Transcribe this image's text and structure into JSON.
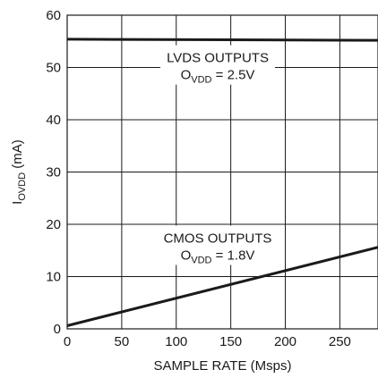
{
  "chart_data": {
    "type": "line",
    "xlabel": "SAMPLE RATE (Msps)",
    "ylabel": {
      "main": "I",
      "sub": "OVDD",
      "unit": " (mA)"
    },
    "xlim": [
      0,
      285
    ],
    "ylim": [
      0,
      60
    ],
    "x_ticks": [
      0,
      50,
      100,
      150,
      200,
      250
    ],
    "y_ticks": [
      0,
      10,
      20,
      30,
      40,
      50,
      60
    ],
    "grid": true,
    "series": [
      {
        "name": "LVDS OUTPUTS",
        "x": [
          0,
          285
        ],
        "y": [
          55.4,
          55.2
        ]
      },
      {
        "name": "CMOS OUTPUTS",
        "x": [
          0,
          285
        ],
        "y": [
          0.6,
          15.6
        ]
      }
    ],
    "annotations": [
      {
        "series": "LVDS OUTPUTS",
        "line1": "LVDS OUTPUTS",
        "line2": {
          "main": "O",
          "sub": "VDD",
          "rest": " = 2.5V"
        },
        "at": [
          138,
          51
        ]
      },
      {
        "series": "CMOS OUTPUTS",
        "line1": "CMOS OUTPUTS",
        "line2": {
          "main": "O",
          "sub": "VDD",
          "rest": " = 1.8V"
        },
        "at": [
          138,
          16.5
        ]
      }
    ]
  }
}
